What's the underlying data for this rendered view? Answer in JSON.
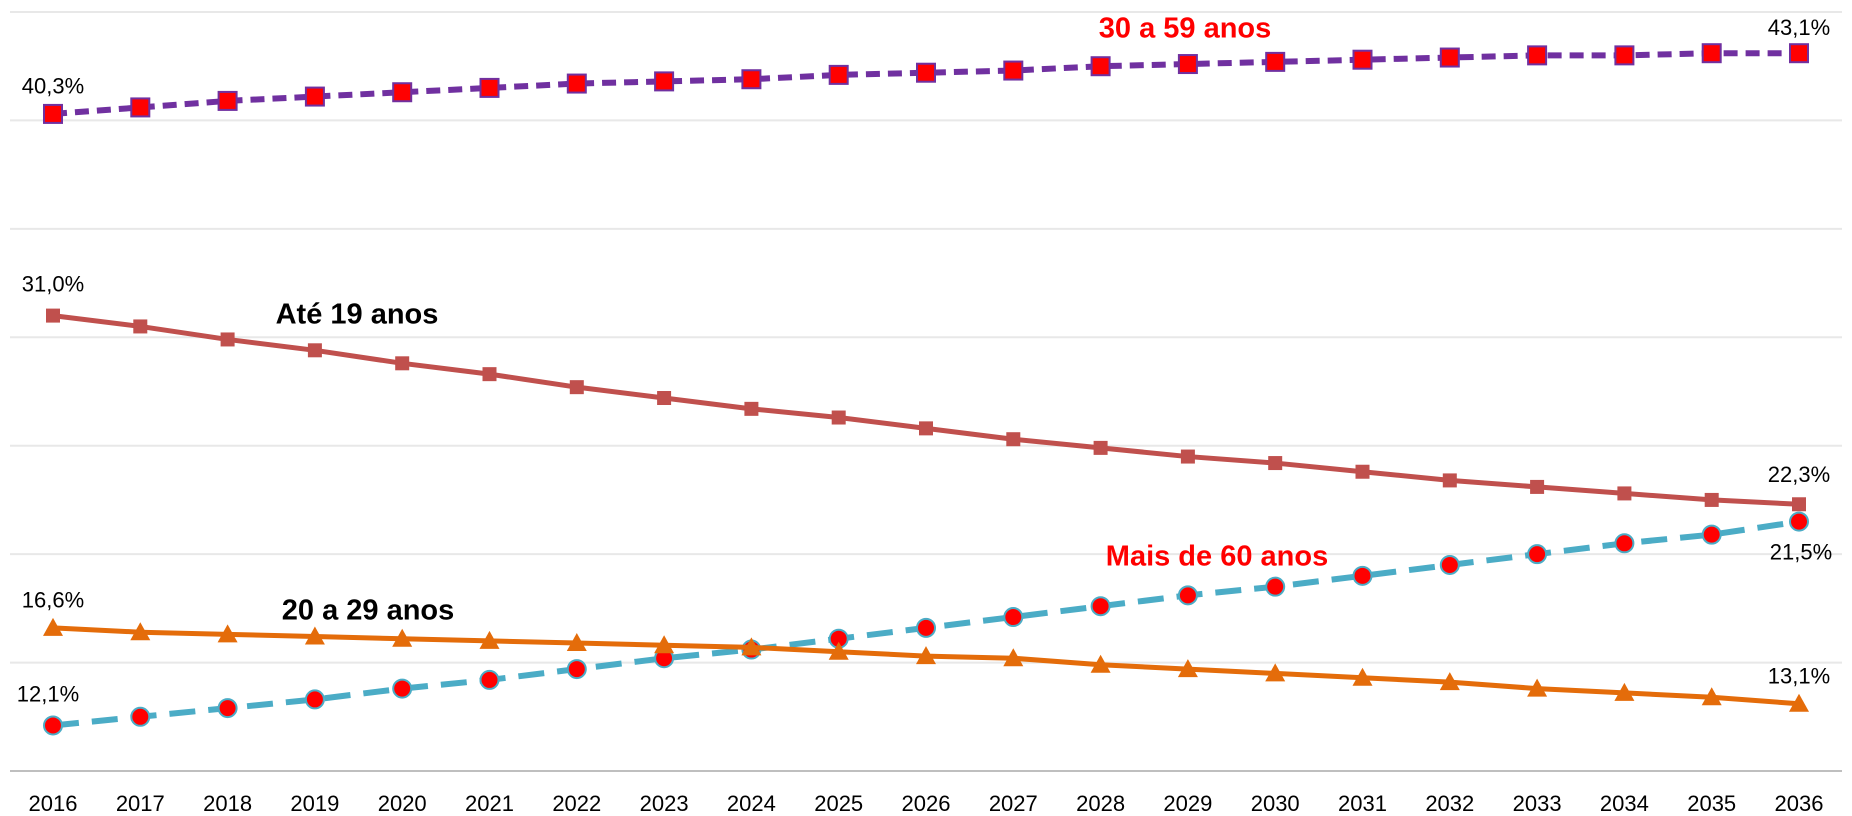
{
  "chart_data": {
    "type": "line",
    "categories": [
      "2016",
      "2017",
      "2018",
      "2019",
      "2020",
      "2021",
      "2022",
      "2023",
      "2024",
      "2025",
      "2026",
      "2027",
      "2028",
      "2029",
      "2030",
      "2031",
      "2032",
      "2033",
      "2034",
      "2035",
      "2036"
    ],
    "ylim": [
      10,
      45
    ],
    "yticks": [
      10,
      15,
      20,
      25,
      30,
      35,
      40,
      45
    ],
    "grid": true,
    "series": [
      {
        "name": "30 a 59 anos",
        "color": "#7030a0",
        "marker_color": "#ff0000",
        "marker": "square",
        "dash": true,
        "label_color": "#ff0000",
        "values": [
          40.3,
          40.6,
          40.9,
          41.1,
          41.3,
          41.5,
          41.7,
          41.8,
          41.9,
          42.1,
          42.2,
          42.3,
          42.5,
          42.6,
          42.7,
          42.8,
          42.9,
          43.0,
          43.0,
          43.1,
          43.1
        ],
        "value_labels": [
          "40,3%",
          null,
          null,
          null,
          null,
          null,
          null,
          null,
          null,
          null,
          null,
          null,
          null,
          null,
          null,
          null,
          null,
          null,
          null,
          null,
          "43,1%"
        ]
      },
      {
        "name": "Até 19 anos",
        "color": "#c0504d",
        "marker_color": "#c0504d",
        "marker": "smallsquare",
        "dash": false,
        "label_color": "#000000",
        "values": [
          31.0,
          30.5,
          29.9,
          29.4,
          28.8,
          28.3,
          27.7,
          27.2,
          26.7,
          26.3,
          25.8,
          25.3,
          24.9,
          24.5,
          24.2,
          23.8,
          23.4,
          23.1,
          22.8,
          22.5,
          22.3
        ],
        "value_labels": [
          "31,0%",
          null,
          null,
          null,
          null,
          null,
          null,
          null,
          null,
          null,
          null,
          null,
          null,
          null,
          null,
          null,
          null,
          null,
          null,
          null,
          "22,3%"
        ]
      },
      {
        "name": "Mais de 60 anos",
        "color": "#4bacc6",
        "marker_color": "#ff0000",
        "marker": "circle",
        "dash": true,
        "label_color": "#ff0000",
        "values": [
          12.1,
          12.5,
          12.9,
          13.3,
          13.8,
          14.2,
          14.7,
          15.2,
          15.6,
          16.1,
          16.6,
          17.1,
          17.6,
          18.1,
          18.5,
          19.0,
          19.5,
          20.0,
          20.5,
          20.9,
          21.5
        ],
        "value_labels": [
          "12,1%",
          null,
          null,
          null,
          null,
          null,
          null,
          null,
          null,
          null,
          null,
          null,
          null,
          null,
          null,
          null,
          null,
          null,
          null,
          null,
          "21,5%"
        ]
      },
      {
        "name": "20 a 29 anos",
        "color": "#e46c0a",
        "marker_color": "#e46c0a",
        "marker": "triangle",
        "dash": false,
        "label_color": "#000000",
        "values": [
          16.6,
          16.4,
          16.3,
          16.2,
          16.1,
          16.0,
          15.9,
          15.8,
          15.7,
          15.5,
          15.3,
          15.2,
          14.9,
          14.7,
          14.5,
          14.3,
          14.1,
          13.8,
          13.6,
          13.4,
          13.1
        ],
        "value_labels": [
          "16,6%",
          null,
          null,
          null,
          null,
          null,
          null,
          null,
          null,
          null,
          null,
          null,
          null,
          null,
          null,
          null,
          null,
          null,
          null,
          null,
          "13,1%"
        ]
      }
    ]
  }
}
